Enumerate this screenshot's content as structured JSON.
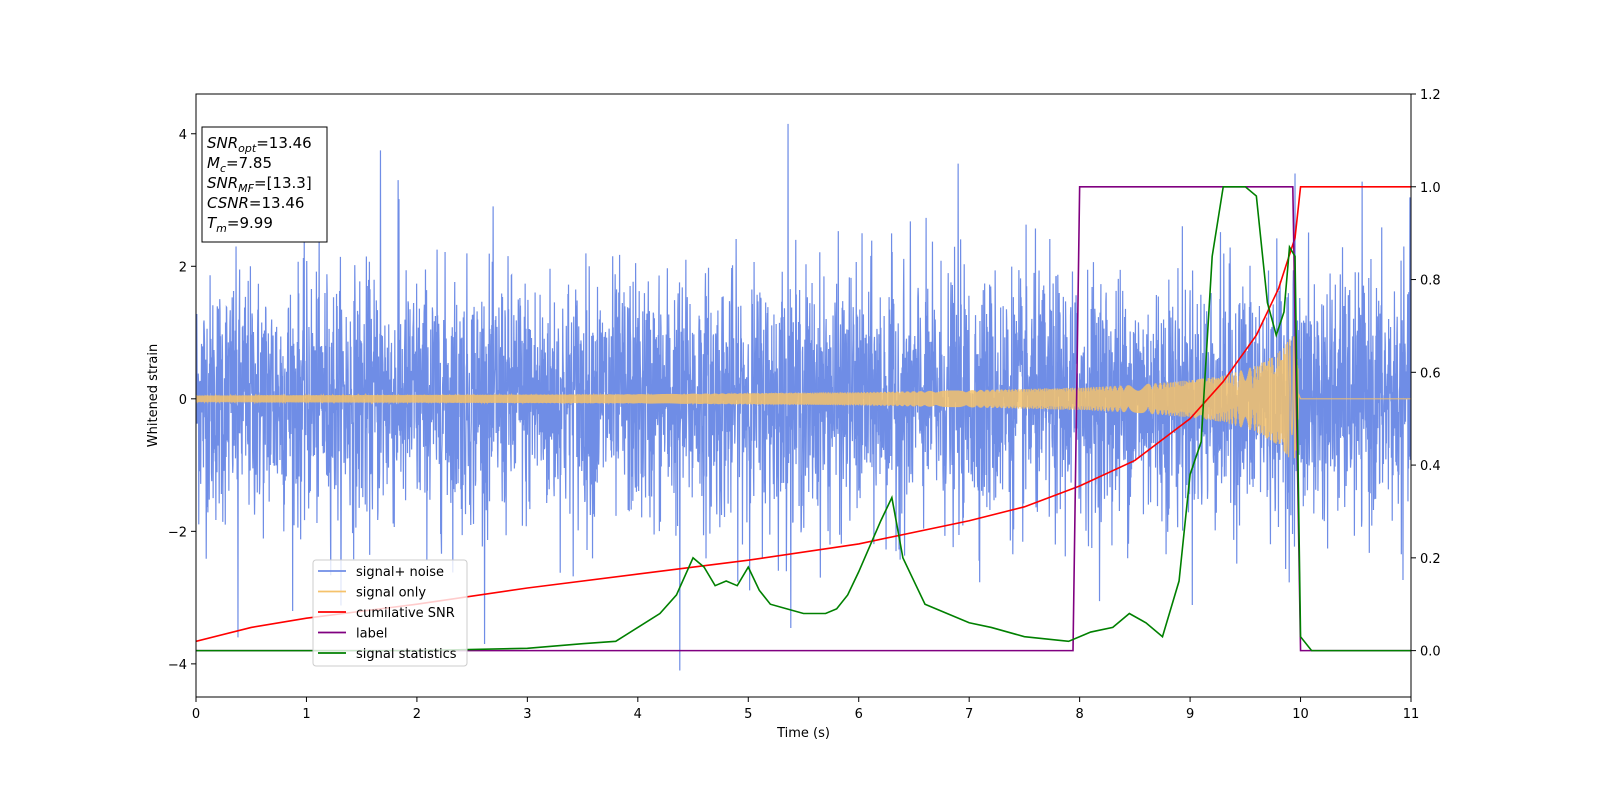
{
  "chart_data": {
    "type": "line",
    "xlabel": "Time (s)",
    "ylabel": "Whitened strain",
    "xlim": [
      0,
      11
    ],
    "ylim": [
      -4.5,
      4.6
    ],
    "y2lim": [
      -0.1,
      1.2
    ],
    "grid": false,
    "legend_position": "lower-left",
    "x_ticks": [
      "0",
      "1",
      "2",
      "3",
      "4",
      "5",
      "6",
      "7",
      "8",
      "9",
      "10",
      "11"
    ],
    "y_ticks": [
      "4",
      "2",
      "0",
      "−2",
      "−4"
    ],
    "y_tick_values": [
      4,
      2,
      0,
      -2,
      -4
    ],
    "y2_ticks": [
      "1.2",
      "1.0",
      "0.8",
      "0.6",
      "0.4",
      "0.2",
      "0.0"
    ],
    "y2_tick_values": [
      1.2,
      1.0,
      0.8,
      0.6,
      0.4,
      0.2,
      0.0
    ],
    "annotation": {
      "lines": [
        {
          "sym": "SNR",
          "sub": "opt",
          "val": "=13.46"
        },
        {
          "sym": "M",
          "sub": "c",
          "val": "=7.85"
        },
        {
          "sym": "SNR",
          "sub": "MF",
          "val": "=[13.3]"
        },
        {
          "sym": "CSNR",
          "sub": "",
          "val": "=13.46"
        },
        {
          "sym": "T",
          "sub": "m",
          "val": "=9.99"
        }
      ]
    },
    "series": [
      {
        "name": "signal+ noise",
        "axis": "left",
        "color": "#6f8de6",
        "kind": "noise",
        "noise_std": 1.0,
        "peaks": [
          [
            1.67,
            3.75
          ],
          [
            5.36,
            4.15
          ],
          [
            4.38,
            -4.1
          ],
          [
            1.83,
            3.3
          ],
          [
            6.9,
            3.55
          ],
          [
            0.38,
            -3.6
          ],
          [
            9.95,
            3.4
          ]
        ]
      },
      {
        "name": "signal only",
        "axis": "left",
        "color": "#f5c26b",
        "kind": "chirp",
        "envelope_x": [
          0,
          2,
          4,
          6,
          7,
          8,
          8.5,
          9,
          9.3,
          9.6,
          9.8,
          9.95,
          10.0,
          11
        ],
        "envelope_y": [
          0.05,
          0.06,
          0.07,
          0.1,
          0.13,
          0.17,
          0.21,
          0.28,
          0.35,
          0.5,
          0.7,
          1.0,
          0.0,
          0.0
        ]
      },
      {
        "name": "cumilative SNR",
        "axis": "right",
        "color": "#ff0000",
        "x": [
          0,
          0.5,
          1,
          2,
          3,
          4,
          5,
          6,
          7,
          7.5,
          8,
          8.5,
          9,
          9.3,
          9.6,
          9.8,
          9.95,
          10.0,
          11
        ],
        "y": [
          0.02,
          0.05,
          0.07,
          0.1,
          0.135,
          0.165,
          0.195,
          0.23,
          0.28,
          0.31,
          0.355,
          0.41,
          0.5,
          0.58,
          0.68,
          0.78,
          0.89,
          1.0,
          1.0
        ]
      },
      {
        "name": "label",
        "axis": "right",
        "color": "#800080",
        "x": [
          0,
          7.94,
          8.0,
          9.93,
          10.0,
          11
        ],
        "y": [
          0,
          0,
          1,
          1,
          0,
          0
        ]
      },
      {
        "name": "signal statistics",
        "axis": "right",
        "color": "#008000",
        "x": [
          0,
          1,
          2,
          3,
          3.5,
          3.8,
          4.0,
          4.2,
          4.35,
          4.5,
          4.6,
          4.7,
          4.8,
          4.9,
          5.0,
          5.1,
          5.2,
          5.35,
          5.5,
          5.7,
          5.8,
          5.9,
          6.0,
          6.2,
          6.3,
          6.4,
          6.5,
          6.6,
          6.8,
          7.0,
          7.2,
          7.5,
          7.9,
          8.1,
          8.3,
          8.45,
          8.6,
          8.75,
          8.9,
          9.0,
          9.1,
          9.2,
          9.3,
          9.5,
          9.6,
          9.7,
          9.78,
          9.85,
          9.9,
          9.95,
          10.0,
          10.1,
          11
        ],
        "y": [
          0.0,
          0.0,
          0.0,
          0.005,
          0.015,
          0.02,
          0.05,
          0.08,
          0.12,
          0.2,
          0.18,
          0.14,
          0.15,
          0.14,
          0.18,
          0.13,
          0.1,
          0.09,
          0.08,
          0.08,
          0.09,
          0.12,
          0.17,
          0.28,
          0.33,
          0.2,
          0.15,
          0.1,
          0.08,
          0.06,
          0.05,
          0.03,
          0.02,
          0.04,
          0.05,
          0.08,
          0.06,
          0.03,
          0.15,
          0.38,
          0.45,
          0.85,
          1.0,
          1.0,
          0.98,
          0.75,
          0.68,
          0.73,
          0.87,
          0.85,
          0.03,
          0.0,
          0.0
        ]
      }
    ]
  }
}
